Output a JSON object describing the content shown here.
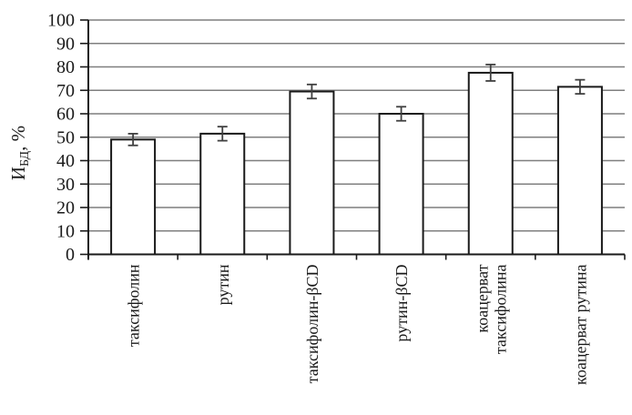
{
  "chart_data": {
    "type": "bar",
    "title": "",
    "ylabel": {
      "main": "И",
      "sub": "БД",
      "suffix": ", %"
    },
    "xlabel": "",
    "ylim": [
      0,
      100
    ],
    "yticks": [
      0,
      10,
      20,
      30,
      40,
      50,
      60,
      70,
      80,
      90,
      100
    ],
    "grid": true,
    "legend": false,
    "categories": [
      {
        "lines": [
          "таксифолин"
        ]
      },
      {
        "lines": [
          "рутин"
        ]
      },
      {
        "lines": [
          "таксифолин-βCD"
        ]
      },
      {
        "lines": [
          "рутин-βCD"
        ]
      },
      {
        "lines": [
          "коацерват",
          "таксифолина"
        ]
      },
      {
        "lines": [
          "коацерват рутина"
        ]
      }
    ],
    "values": [
      49,
      51.5,
      69.5,
      60,
      77.5,
      71.5
    ],
    "errors": [
      2.5,
      3,
      3,
      3,
      3.5,
      3
    ],
    "colors": {
      "background": "#ffffff",
      "bar_fill": "#ffffff",
      "bar_stroke": "#1a1a1a",
      "grid": "#7f7f7f",
      "axis": "#1a1a1a",
      "error": "#404040",
      "text": "#1a1a1a"
    }
  }
}
